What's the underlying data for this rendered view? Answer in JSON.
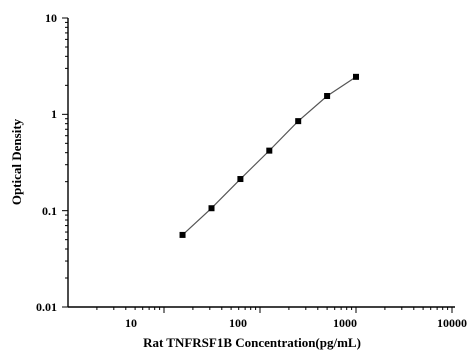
{
  "chart_data": {
    "type": "line",
    "title": "",
    "xlabel": "Rat TNFRSF1B Concentration(pg/mL)",
    "ylabel": "Optical Density",
    "x_scale": "log",
    "y_scale": "log",
    "xlim": [
      1,
      10000
    ],
    "ylim": [
      0.01,
      10
    ],
    "x_ticks": [
      "10",
      "100",
      "1000",
      "10000"
    ],
    "y_ticks": [
      "0.01",
      "0.1",
      "1",
      "10"
    ],
    "grid": false,
    "legend": "none",
    "marker": "square",
    "colors": {
      "axis": "#000000",
      "line": "#555555",
      "marker": "#000000"
    },
    "series": [
      {
        "x": [
          15.6,
          31.25,
          62.5,
          125,
          250,
          500,
          1000
        ],
        "y": [
          0.056,
          0.106,
          0.213,
          0.42,
          0.85,
          1.55,
          2.45
        ]
      }
    ]
  }
}
